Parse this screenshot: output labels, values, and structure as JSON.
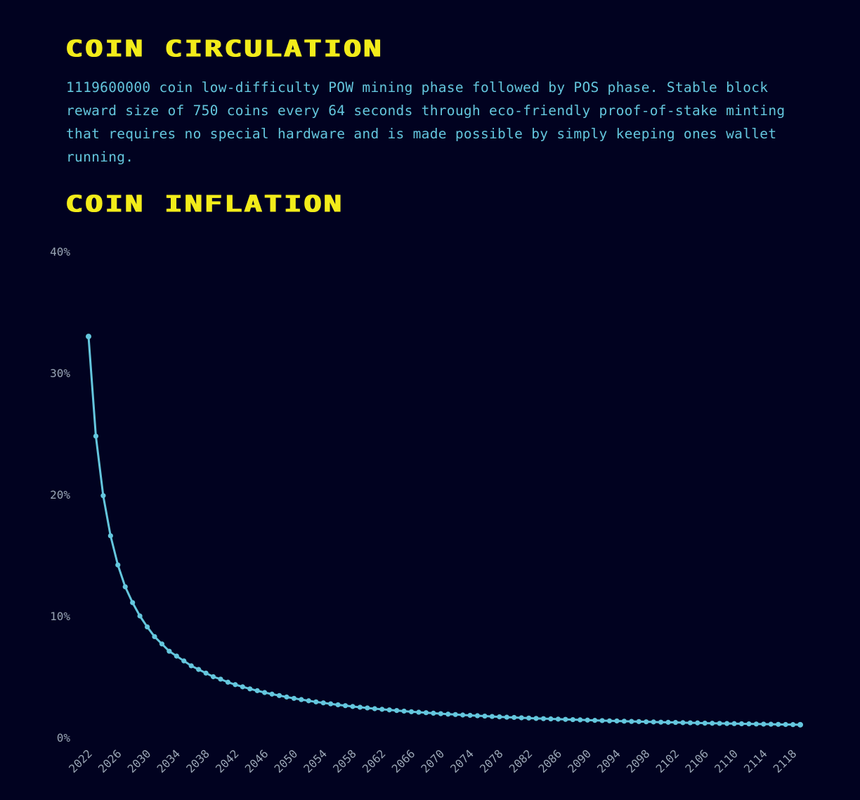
{
  "sections": {
    "circulation": {
      "title": "Coin Circulation",
      "description": "1119600000 coin low-difficulty POW mining phase followed by POS phase. Stable block reward size of 750 coins every 64 seconds through eco-friendly proof-of-stake minting that requires no special hardware and is made possible by simply keeping ones wallet running."
    },
    "inflation": {
      "title": "Coin Inflation"
    }
  },
  "colors": {
    "background": "#010220",
    "title": "#f2ec1a",
    "text": "#64c6dd",
    "line": "#64c6dd",
    "tick_text": "#9aa6b5"
  },
  "chart_data": {
    "type": "line",
    "title": "",
    "xlabel": "",
    "ylabel": "",
    "ylim": [
      0,
      40
    ],
    "yticks": [
      "0%",
      "10%",
      "20%",
      "30%",
      "40%"
    ],
    "xticks": [
      "2022",
      "2026",
      "2030",
      "2034",
      "2038",
      "2042",
      "2046",
      "2050",
      "2054",
      "2058",
      "2062",
      "2066",
      "2070",
      "2074",
      "2078",
      "2082",
      "2086",
      "2090",
      "2094",
      "2098",
      "2102",
      "2106",
      "2110",
      "2114",
      "2118"
    ],
    "grid": false,
    "legend": "none",
    "x": [
      2022,
      2023,
      2024,
      2025,
      2026,
      2027,
      2028,
      2029,
      2030,
      2031,
      2032,
      2033,
      2034,
      2035,
      2036,
      2037,
      2038,
      2039,
      2040,
      2041,
      2042,
      2043,
      2044,
      2045,
      2046,
      2047,
      2048,
      2049,
      2050,
      2051,
      2052,
      2053,
      2054,
      2055,
      2056,
      2057,
      2058,
      2059,
      2060,
      2061,
      2062,
      2063,
      2064,
      2065,
      2066,
      2067,
      2068,
      2069,
      2070,
      2071,
      2072,
      2073,
      2074,
      2075,
      2076,
      2077,
      2078,
      2079,
      2080,
      2081,
      2082,
      2083,
      2084,
      2085,
      2086,
      2087,
      2088,
      2089,
      2090,
      2091,
      2092,
      2093,
      2094,
      2095,
      2096,
      2097,
      2098,
      2099,
      2100,
      2101,
      2102,
      2103,
      2104,
      2105,
      2106,
      2107,
      2108,
      2109,
      2110,
      2111,
      2112,
      2113,
      2114,
      2115,
      2116,
      2117,
      2118,
      2119
    ],
    "series": [
      {
        "values": [
          33.0,
          24.8,
          19.9,
          16.6,
          14.2,
          12.4,
          11.1,
          10.0,
          9.1,
          8.3,
          7.7,
          7.1,
          6.7,
          6.3,
          5.9,
          5.6,
          5.3,
          5.0,
          4.8,
          4.55,
          4.35,
          4.17,
          4.0,
          3.85,
          3.7,
          3.57,
          3.45,
          3.33,
          3.22,
          3.12,
          3.02,
          2.93,
          2.85,
          2.77,
          2.69,
          2.62,
          2.55,
          2.49,
          2.43,
          2.37,
          2.32,
          2.27,
          2.22,
          2.17,
          2.12,
          2.08,
          2.04,
          2.0,
          1.96,
          1.92,
          1.89,
          1.85,
          1.82,
          1.79,
          1.76,
          1.73,
          1.7,
          1.67,
          1.65,
          1.62,
          1.6,
          1.57,
          1.55,
          1.53,
          1.51,
          1.49,
          1.47,
          1.45,
          1.43,
          1.41,
          1.39,
          1.37,
          1.36,
          1.34,
          1.32,
          1.31,
          1.29,
          1.28,
          1.26,
          1.25,
          1.24,
          1.22,
          1.21,
          1.2,
          1.18,
          1.17,
          1.16,
          1.15,
          1.14,
          1.13,
          1.12,
          1.11,
          1.1,
          1.09,
          1.08,
          1.07,
          1.06,
          1.05
        ]
      }
    ]
  }
}
